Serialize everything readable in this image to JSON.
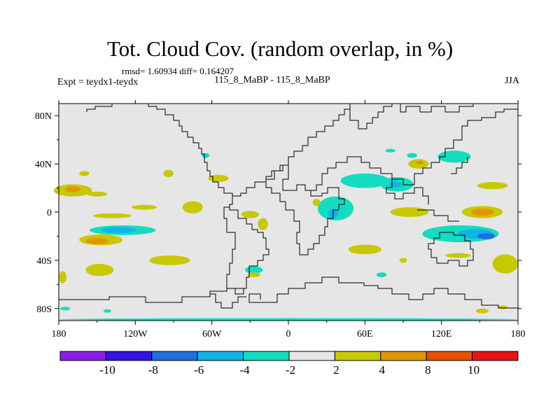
{
  "header": {
    "title": "Tot. Cloud Cov. (random overlap, in %)",
    "stats": "rmsd= 1.60934 diff= 0.164207",
    "expt": "Expt = teydx1-teydx",
    "case": "115_8_MaBP - 115_8_MaBP",
    "season": "JJA"
  },
  "chart_data": {
    "type": "contour-map",
    "title": "Tot. Cloud Cov. (random overlap, in %)",
    "subtitle": "115_8_MaBP - 115_8_MaBP",
    "xlabel": "",
    "ylabel": "",
    "xlim": [
      -180,
      180
    ],
    "ylim": [
      -90,
      90
    ],
    "x_ticks": [
      {
        "value": -180,
        "label": "180"
      },
      {
        "value": -120,
        "label": "120W"
      },
      {
        "value": -60,
        "label": "60W"
      },
      {
        "value": 0,
        "label": "0"
      },
      {
        "value": 60,
        "label": "60E"
      },
      {
        "value": 120,
        "label": "120E"
      },
      {
        "value": 180,
        "label": "180"
      }
    ],
    "y_ticks": [
      {
        "value": 80,
        "label": "80N"
      },
      {
        "value": 40,
        "label": "40N"
      },
      {
        "value": 0,
        "label": "0"
      },
      {
        "value": -40,
        "label": "40S"
      },
      {
        "value": -80,
        "label": "80S"
      }
    ],
    "colorbar": {
      "bins": [
        {
          "color": "#8a1ee8"
        },
        {
          "color": "#3214e0"
        },
        {
          "color": "#1f6fe0"
        },
        {
          "color": "#12b4e8"
        },
        {
          "color": "#14dcc0"
        },
        {
          "color": "#e6e6e6"
        },
        {
          "color": "#c8c800"
        },
        {
          "color": "#e09600"
        },
        {
          "color": "#e65000"
        },
        {
          "color": "#e61414"
        }
      ],
      "labels": [
        {
          "boundary": 1,
          "text": "-10"
        },
        {
          "boundary": 2,
          "text": "-8"
        },
        {
          "boundary": 3,
          "text": "-6"
        },
        {
          "boundary": 4,
          "text": "-4"
        },
        {
          "boundary": 5,
          "text": "-2"
        },
        {
          "boundary": 6,
          "text": "2"
        },
        {
          "boundary": 7,
          "text": "4"
        },
        {
          "boundary": 8,
          "text": "8"
        },
        {
          "boundary": 9,
          "text": "10"
        }
      ]
    },
    "anomaly_regions": [
      {
        "lon": -169,
        "lat": 18,
        "rx": 15,
        "ry": 5,
        "level": 2
      },
      {
        "lon": -169,
        "lat": 19,
        "rx": 6,
        "ry": 2.5,
        "level": 4
      },
      {
        "lon": -150,
        "lat": 15,
        "rx": 8,
        "ry": 2,
        "level": 2
      },
      {
        "lon": -138,
        "lat": -3,
        "rx": 15,
        "ry": 2,
        "level": 2
      },
      {
        "lon": -130,
        "lat": -15,
        "rx": 26,
        "ry": 4,
        "level": -2
      },
      {
        "lon": -133,
        "lat": -15,
        "rx": 14,
        "ry": 2.5,
        "level": -4
      },
      {
        "lon": -147,
        "lat": -23,
        "rx": 17,
        "ry": 4.5,
        "level": 2
      },
      {
        "lon": -150,
        "lat": -24,
        "rx": 9,
        "ry": 2.5,
        "level": 4
      },
      {
        "lon": -75,
        "lat": 4,
        "rx": 8,
        "ry": 5,
        "level": 2
      },
      {
        "lon": -113,
        "lat": 4,
        "rx": 10,
        "ry": 2,
        "level": 2
      },
      {
        "lon": -148,
        "lat": -48,
        "rx": 11,
        "ry": 5,
        "level": 2
      },
      {
        "lon": -93,
        "lat": -40,
        "rx": 16,
        "ry": 4,
        "level": 2
      },
      {
        "lon": -160,
        "lat": 32,
        "rx": 4,
        "ry": 2,
        "level": 2
      },
      {
        "lon": -94,
        "lat": 32,
        "rx": 4,
        "ry": 3,
        "level": 2
      },
      {
        "lon": -30,
        "lat": -2,
        "rx": 7,
        "ry": 3,
        "level": 2
      },
      {
        "lon": -20,
        "lat": -10,
        "rx": 4,
        "ry": 5,
        "level": 2
      },
      {
        "lon": -27,
        "lat": -48,
        "rx": 7,
        "ry": 3,
        "level": -2
      },
      {
        "lon": -27,
        "lat": -52,
        "rx": 5,
        "ry": 2,
        "level": 2
      },
      {
        "lon": -55,
        "lat": 28,
        "rx": 8,
        "ry": 3,
        "level": 2
      },
      {
        "lon": -65,
        "lat": 47,
        "rx": 3,
        "ry": 2,
        "level": -2
      },
      {
        "lon": 37,
        "lat": 3,
        "rx": 14,
        "ry": 10,
        "level": -2
      },
      {
        "lon": 35,
        "lat": -1,
        "rx": 4,
        "ry": 4,
        "level": -4
      },
      {
        "lon": 22,
        "lat": 8,
        "rx": 3,
        "ry": 3,
        "level": 2
      },
      {
        "lon": 60,
        "lat": 26,
        "rx": 19,
        "ry": 6,
        "level": -2
      },
      {
        "lon": 85,
        "lat": 23,
        "rx": 13,
        "ry": 6,
        "level": -2
      },
      {
        "lon": 84,
        "lat": 23,
        "rx": 5,
        "ry": 2.5,
        "level": -4
      },
      {
        "lon": 95,
        "lat": 0,
        "rx": 15,
        "ry": 4,
        "level": 2
      },
      {
        "lon": 152,
        "lat": 0,
        "rx": 16,
        "ry": 5,
        "level": 2
      },
      {
        "lon": 152,
        "lat": 0,
        "rx": 9,
        "ry": 3,
        "level": 4
      },
      {
        "lon": 160,
        "lat": 22,
        "rx": 12,
        "ry": 3,
        "level": 2
      },
      {
        "lon": 135,
        "lat": -18,
        "rx": 30,
        "ry": 7,
        "level": -2
      },
      {
        "lon": 147,
        "lat": -18,
        "rx": 14,
        "ry": 4,
        "level": -4
      },
      {
        "lon": 155,
        "lat": -20,
        "rx": 7,
        "ry": 2.5,
        "level": -6
      },
      {
        "lon": 170,
        "lat": -43,
        "rx": 10,
        "ry": 8,
        "level": 2
      },
      {
        "lon": 133,
        "lat": -36,
        "rx": 10,
        "ry": 2,
        "level": 2
      },
      {
        "lon": 102,
        "lat": 40,
        "rx": 8,
        "ry": 4,
        "level": 2
      },
      {
        "lon": 103,
        "lat": 41,
        "rx": 3,
        "ry": 1.5,
        "level": 4
      },
      {
        "lon": 130,
        "lat": 46,
        "rx": 13,
        "ry": 5,
        "level": -2
      },
      {
        "lon": 97,
        "lat": 47,
        "rx": 4,
        "ry": 2,
        "level": -2
      },
      {
        "lon": 80,
        "lat": 51,
        "rx": 4,
        "ry": 1.5,
        "level": -2
      },
      {
        "lon": 60,
        "lat": -31,
        "rx": 13,
        "ry": 4,
        "level": 2
      },
      {
        "lon": 90,
        "lat": -40,
        "rx": 3,
        "ry": 2,
        "level": 2
      },
      {
        "lon": 73,
        "lat": -52,
        "rx": 4,
        "ry": 2,
        "level": -2
      },
      {
        "lon": 152,
        "lat": -82,
        "rx": 5,
        "ry": 2,
        "level": 2
      },
      {
        "lon": 168,
        "lat": -79,
        "rx": 4,
        "ry": 1.5,
        "level": 2
      },
      {
        "lon": -175,
        "lat": -80,
        "rx": 4,
        "ry": 1.5,
        "level": -2
      },
      {
        "lon": -142,
        "lat": -82,
        "rx": 3,
        "ry": 1.5,
        "level": -2
      },
      {
        "lon": -177,
        "lat": -54,
        "rx": 3,
        "ry": 5,
        "level": 2
      },
      {
        "lon": 0,
        "lat": -89,
        "rx": 180,
        "ry": 1,
        "level": -2
      }
    ]
  }
}
